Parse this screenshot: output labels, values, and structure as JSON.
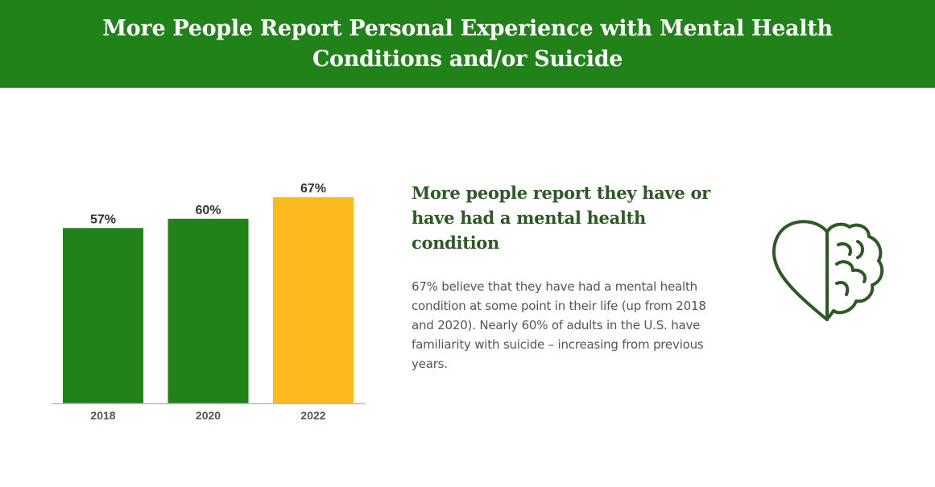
{
  "header": {
    "title": "More People Report Personal Experience with Mental Health Conditions and/or Suicide"
  },
  "chart_data": {
    "type": "bar",
    "categories": [
      "2018",
      "2020",
      "2022"
    ],
    "values": [
      57,
      60,
      67
    ],
    "labels": [
      "57%",
      "60%",
      "67%"
    ],
    "colors": [
      "#208219",
      "#208219",
      "#fcba1d"
    ],
    "ylim": [
      0,
      100
    ],
    "grid": false,
    "legend": "none"
  },
  "content": {
    "subhead": "More people report they have or have had a mental health condition",
    "body": "67% believe that they have had a mental health condition at some point in their life (up from 2018 and 2020). Nearly 60% of adults in the U.S. have familiarity with suicide – increasing from previous years."
  },
  "icon": {
    "name": "heart-brain-icon",
    "color": "#2c5a23"
  }
}
